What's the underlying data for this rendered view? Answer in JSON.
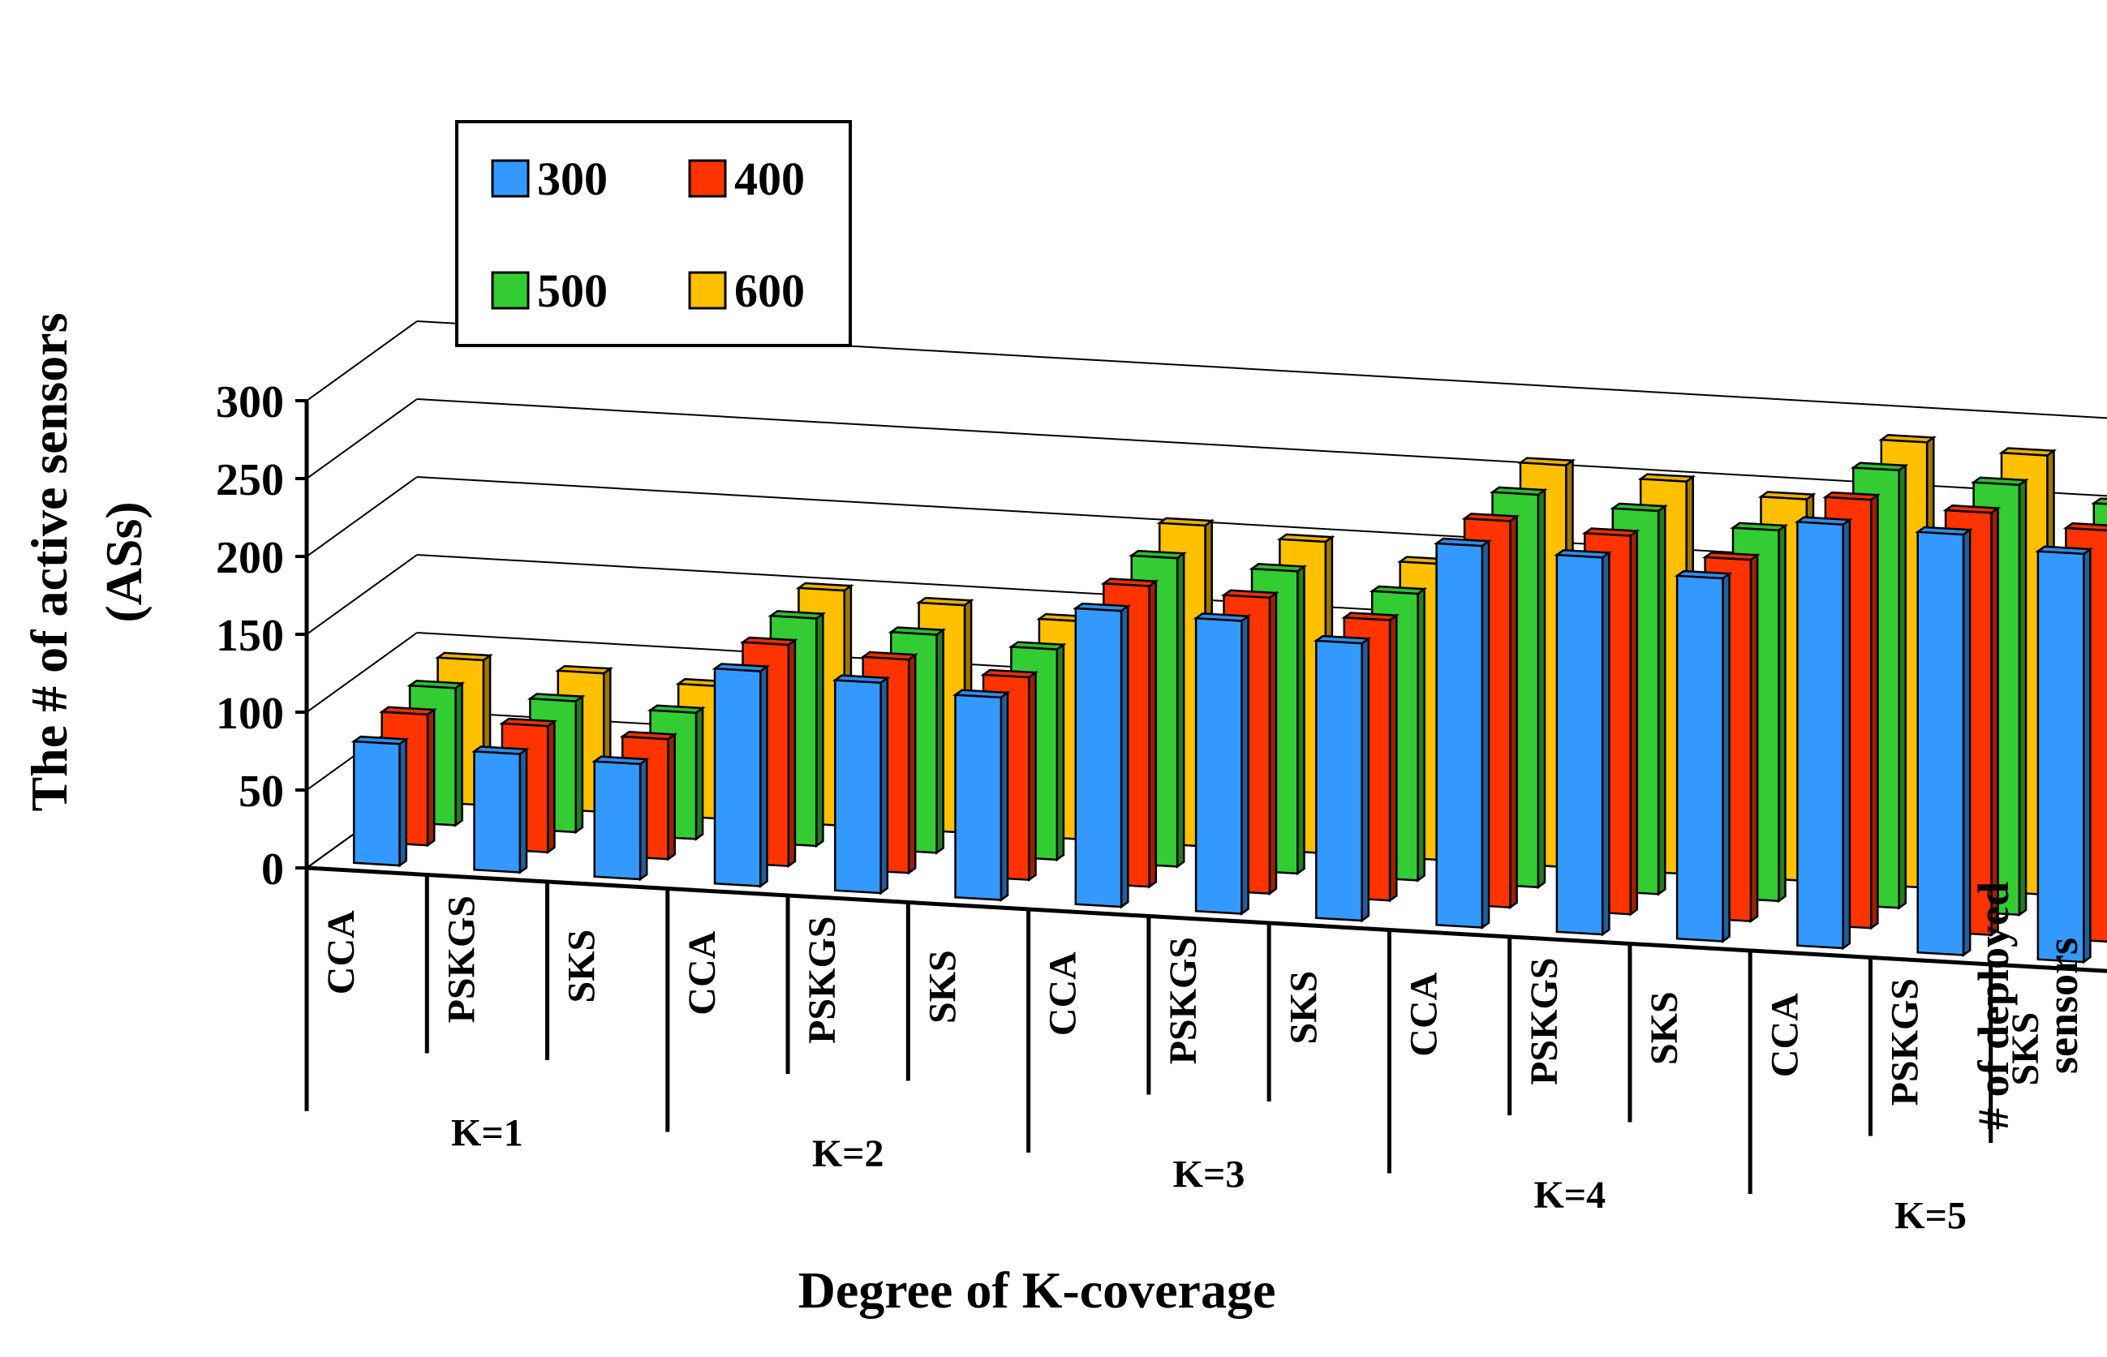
{
  "chart_data": {
    "type": "bar3d",
    "title": "",
    "ylabel_lines": [
      "The # of active sensors",
      "(ASs)"
    ],
    "xlabel": "Degree of K-coverage",
    "zlabel_lines": [
      "# of deployed",
      "sensors"
    ],
    "y_ticks": [
      "0",
      "50",
      "100",
      "150",
      "200",
      "250",
      "300"
    ],
    "ylim": [
      0,
      300
    ],
    "z_tick_labels": [
      "300",
      "500"
    ],
    "groups": [
      "K=1",
      "K=2",
      "K=3",
      "K=4",
      "K=5"
    ],
    "algorithms": [
      "CCA",
      "PSKGS",
      "SKS"
    ],
    "categories": [
      "CCA",
      "PSKGS",
      "SKS",
      "CCA",
      "PSKGS",
      "SKS",
      "CCA",
      "PSKGS",
      "SKS",
      "CCA",
      "PSKGS",
      "SKS",
      "CCA",
      "PSKGS",
      "SKS"
    ],
    "series": [
      {
        "name": "300",
        "color": "#3399ff",
        "values": [
          78,
          76,
          74,
          138,
          135,
          130,
          190,
          188,
          178,
          245,
          242,
          233,
          272,
          270,
          262
        ]
      },
      {
        "name": "400",
        "color": "#ff3300",
        "values": [
          84,
          81,
          77,
          142,
          137,
          130,
          193,
          190,
          180,
          248,
          243,
          232,
          275,
          271,
          264
        ]
      },
      {
        "name": "500",
        "color": "#33cc33",
        "values": [
          88,
          84,
          81,
          146,
          140,
          135,
          198,
          194,
          184,
          252,
          246,
          238,
          281,
          276,
          267
        ]
      },
      {
        "name": "600",
        "color": "#ffc000",
        "values": [
          93,
          89,
          85,
          151,
          146,
          140,
          206,
          200,
          190,
          258,
          252,
          245,
          286,
          282,
          273
        ]
      }
    ],
    "legend_position": "top-left"
  }
}
